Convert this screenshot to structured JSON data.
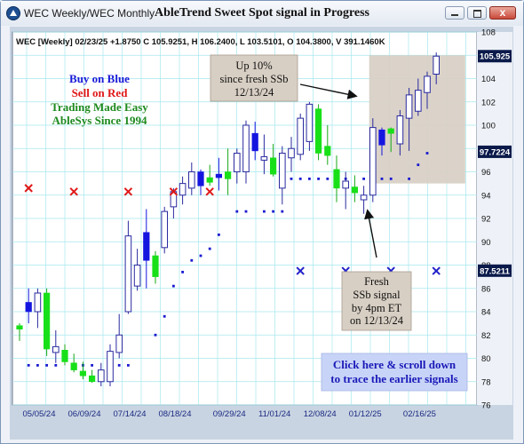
{
  "window": {
    "title": "WEC Weekly/WEC Monthly",
    "close_glyph": "x"
  },
  "chart_data": {
    "type": "bar",
    "title": "AbleTrend Sweet Spot signal in Progress",
    "info_line": "WEC [Weekly] 02/23/25 +1.8750 C 105.9251, H 106.2400, L 103.5101, O 104.3800, V 391.1460K",
    "ylim": [
      76,
      108
    ],
    "y_ticks": [
      76,
      78,
      80,
      82,
      84,
      86,
      88,
      90,
      92,
      94,
      96,
      98,
      100,
      102,
      104,
      106,
      108
    ],
    "x_tick_labels": [
      "05/05/24",
      "06/09/24",
      "07/14/24",
      "08/18/24",
      "09/29/24",
      "11/01/24",
      "12/08/24",
      "01/12/25",
      "02/16/25"
    ],
    "x_tick_index": [
      0,
      5,
      10,
      15,
      21,
      26,
      31,
      36,
      42
    ],
    "price_badges": [
      {
        "value": "105.925",
        "y": 105.925,
        "bg": "#0a1a4a",
        "fg": "#ffffff"
      },
      {
        "value": "97.7224",
        "y": 97.72,
        "bg": "#0a1a4a",
        "fg": "#ffffff"
      },
      {
        "value": "87.5211",
        "y": 87.52,
        "bg": "#0a1a4a",
        "fg": "#ffffff"
      }
    ],
    "colors": {
      "blue": "#1515e0",
      "green": "#18e018",
      "neutral": "#2a2aa0",
      "dot": "#1a1ad0",
      "red_x": "#e01818",
      "blue_x": "#2020c8",
      "annotation_bg": "#d8cfc4"
    },
    "series": [
      {
        "bar": 0,
        "o": 82.5,
        "h": 83.0,
        "l": 81.5,
        "c": 82.8,
        "color": "green"
      },
      {
        "bar": 1,
        "o": 84.0,
        "h": 86.0,
        "l": 83.0,
        "c": 84.8,
        "color": "blue"
      },
      {
        "bar": 2,
        "o": 84.0,
        "h": 86.0,
        "l": 82.6,
        "c": 85.6,
        "color": "neutral"
      },
      {
        "bar": 3,
        "o": 85.6,
        "h": 86.0,
        "l": 80.2,
        "c": 80.8,
        "color": "green"
      },
      {
        "bar": 4,
        "o": 81.0,
        "h": 82.4,
        "l": 79.6,
        "c": 80.5,
        "color": "neutral"
      },
      {
        "bar": 5,
        "o": 80.7,
        "h": 81.2,
        "l": 79.4,
        "c": 79.7,
        "color": "green"
      },
      {
        "bar": 6,
        "o": 79.6,
        "h": 80.4,
        "l": 78.8,
        "c": 79.0,
        "color": "green"
      },
      {
        "bar": 7,
        "o": 78.9,
        "h": 79.7,
        "l": 78.2,
        "c": 78.5,
        "color": "green"
      },
      {
        "bar": 8,
        "o": 78.5,
        "h": 79.0,
        "l": 77.9,
        "c": 78.0,
        "color": "green"
      },
      {
        "bar": 9,
        "o": 78.0,
        "h": 79.6,
        "l": 77.6,
        "c": 79.0,
        "color": "neutral"
      },
      {
        "bar": 10,
        "o": 78.0,
        "h": 81.2,
        "l": 77.6,
        "c": 80.6,
        "color": "neutral"
      },
      {
        "bar": 11,
        "o": 80.5,
        "h": 83.8,
        "l": 80.0,
        "c": 82.0,
        "color": "neutral"
      },
      {
        "bar": 12,
        "o": 84.0,
        "h": 91.8,
        "l": 83.8,
        "c": 90.5,
        "color": "neutral"
      },
      {
        "bar": 13,
        "o": 88.0,
        "h": 89.4,
        "l": 85.8,
        "c": 86.2,
        "color": "neutral"
      },
      {
        "bar": 14,
        "o": 88.4,
        "h": 92.8,
        "l": 86.0,
        "c": 90.8,
        "color": "blue"
      },
      {
        "bar": 15,
        "o": 87.0,
        "h": 89.2,
        "l": 86.4,
        "c": 88.8,
        "color": "green"
      },
      {
        "bar": 16,
        "o": 89.5,
        "h": 93.0,
        "l": 89.0,
        "c": 92.6,
        "color": "neutral"
      },
      {
        "bar": 17,
        "o": 93.0,
        "h": 94.6,
        "l": 92.0,
        "c": 94.3,
        "color": "neutral"
      },
      {
        "bar": 18,
        "o": 94.0,
        "h": 95.6,
        "l": 93.2,
        "c": 95.0,
        "color": "neutral"
      },
      {
        "bar": 19,
        "o": 94.6,
        "h": 96.8,
        "l": 94.0,
        "c": 96.0,
        "color": "neutral"
      },
      {
        "bar": 20,
        "o": 94.8,
        "h": 96.2,
        "l": 94.0,
        "c": 96.0,
        "color": "blue"
      },
      {
        "bar": 21,
        "o": 95.5,
        "h": 96.6,
        "l": 94.8,
        "c": 95.1,
        "color": "green"
      },
      {
        "bar": 22,
        "o": 95.5,
        "h": 97.2,
        "l": 94.4,
        "c": 95.8,
        "color": "blue"
      },
      {
        "bar": 23,
        "o": 96.0,
        "h": 98.0,
        "l": 94.0,
        "c": 95.4,
        "color": "green"
      },
      {
        "bar": 24,
        "o": 96.0,
        "h": 98.0,
        "l": 95.0,
        "c": 97.6,
        "color": "neutral"
      },
      {
        "bar": 25,
        "o": 96.0,
        "h": 100.4,
        "l": 95.0,
        "c": 100.0,
        "color": "neutral"
      },
      {
        "bar": 26,
        "o": 97.8,
        "h": 100.3,
        "l": 97.0,
        "c": 99.3,
        "color": "blue"
      },
      {
        "bar": 27,
        "o": 97.0,
        "h": 99.2,
        "l": 95.8,
        "c": 97.3,
        "color": "neutral"
      },
      {
        "bar": 28,
        "o": 97.2,
        "h": 98.4,
        "l": 95.6,
        "c": 95.8,
        "color": "green"
      },
      {
        "bar": 29,
        "o": 94.6,
        "h": 98.2,
        "l": 93.2,
        "c": 97.6,
        "color": "neutral"
      },
      {
        "bar": 30,
        "o": 98.0,
        "h": 99.0,
        "l": 96.0,
        "c": 97.2,
        "color": "neutral"
      },
      {
        "bar": 31,
        "o": 97.5,
        "h": 101.0,
        "l": 97.0,
        "c": 100.6,
        "color": "neutral"
      },
      {
        "bar": 32,
        "o": 98.6,
        "h": 102.0,
        "l": 97.8,
        "c": 101.8,
        "color": "neutral"
      },
      {
        "bar": 33,
        "o": 101.4,
        "h": 101.8,
        "l": 97.0,
        "c": 97.6,
        "color": "green"
      },
      {
        "bar": 34,
        "o": 98.2,
        "h": 100.0,
        "l": 96.6,
        "c": 97.4,
        "color": "green"
      },
      {
        "bar": 35,
        "o": 96.2,
        "h": 97.4,
        "l": 93.4,
        "c": 94.6,
        "color": "green"
      },
      {
        "bar": 36,
        "o": 94.6,
        "h": 96.0,
        "l": 92.8,
        "c": 95.2,
        "color": "neutral"
      },
      {
        "bar": 37,
        "o": 94.7,
        "h": 95.7,
        "l": 93.4,
        "c": 94.2,
        "color": "green"
      },
      {
        "bar": 38,
        "o": 94.0,
        "h": 94.8,
        "l": 92.4,
        "c": 93.6,
        "color": "neutral"
      },
      {
        "bar": 39,
        "o": 94.0,
        "h": 100.6,
        "l": 93.4,
        "c": 99.8,
        "color": "neutral"
      },
      {
        "bar": 40,
        "o": 98.3,
        "h": 99.8,
        "l": 97.4,
        "c": 99.6,
        "color": "blue"
      },
      {
        "bar": 41,
        "o": 99.3,
        "h": 99.8,
        "l": 97.7,
        "c": 99.7,
        "color": "green"
      },
      {
        "bar": 42,
        "o": 98.4,
        "h": 101.3,
        "l": 97.4,
        "c": 100.8,
        "color": "neutral"
      },
      {
        "bar": 43,
        "o": 100.6,
        "h": 103.2,
        "l": 97.8,
        "c": 102.6,
        "color": "neutral"
      },
      {
        "bar": 44,
        "o": 101.2,
        "h": 104.0,
        "l": 100.8,
        "c": 103.0,
        "color": "neutral"
      },
      {
        "bar": 45,
        "o": 102.8,
        "h": 104.6,
        "l": 101.4,
        "c": 104.2,
        "color": "neutral"
      },
      {
        "bar": 46,
        "o": 104.38,
        "h": 106.24,
        "l": 103.51,
        "c": 105.9251,
        "color": "neutral"
      }
    ],
    "stop_dots": [
      {
        "bar": 1,
        "y": 79.4
      },
      {
        "bar": 2,
        "y": 79.4
      },
      {
        "bar": 3,
        "y": 79.4
      },
      {
        "bar": 4,
        "y": 79.4
      },
      {
        "bar": 6,
        "y": 79.4
      },
      {
        "bar": 7,
        "y": 79.4
      },
      {
        "bar": 8,
        "y": 79.4
      },
      {
        "bar": 10,
        "y": 79.4
      },
      {
        "bar": 11,
        "y": 79.4
      },
      {
        "bar": 12,
        "y": 79.4
      },
      {
        "bar": 15,
        "y": 82.0
      },
      {
        "bar": 16,
        "y": 83.6
      },
      {
        "bar": 17,
        "y": 86.2
      },
      {
        "bar": 18,
        "y": 87.4
      },
      {
        "bar": 19,
        "y": 88.4
      },
      {
        "bar": 20,
        "y": 88.8
      },
      {
        "bar": 21,
        "y": 89.4
      },
      {
        "bar": 22,
        "y": 90.6
      },
      {
        "bar": 24,
        "y": 92.6
      },
      {
        "bar": 25,
        "y": 92.6
      },
      {
        "bar": 27,
        "y": 92.6
      },
      {
        "bar": 28,
        "y": 92.6
      },
      {
        "bar": 29,
        "y": 92.6
      },
      {
        "bar": 30,
        "y": 95.4
      },
      {
        "bar": 31,
        "y": 95.4
      },
      {
        "bar": 32,
        "y": 95.4
      },
      {
        "bar": 33,
        "y": 95.4
      },
      {
        "bar": 34,
        "y": 95.4
      },
      {
        "bar": 36,
        "y": 95.4
      },
      {
        "bar": 38,
        "y": 95.4
      },
      {
        "bar": 40,
        "y": 95.4
      },
      {
        "bar": 41,
        "y": 95.4
      },
      {
        "bar": 43,
        "y": 95.4
      },
      {
        "bar": 44,
        "y": 96.6
      },
      {
        "bar": 45,
        "y": 97.6
      }
    ],
    "sell_markers": [
      {
        "bar": 1,
        "y": 94.6
      },
      {
        "bar": 6,
        "y": 94.3
      },
      {
        "bar": 12,
        "y": 94.3
      },
      {
        "bar": 17,
        "y": 94.3
      },
      {
        "bar": 21,
        "y": 94.3
      }
    ],
    "buy_markers": [
      {
        "bar": 31,
        "y": 87.5
      },
      {
        "bar": 36,
        "y": 87.5
      },
      {
        "bar": 41,
        "y": 87.5
      },
      {
        "bar": 46,
        "y": 87.5
      }
    ],
    "highlight_zone": {
      "from_bar": 38.6,
      "to_bar": 49.2,
      "ylow": 95.0,
      "yhigh": 106.0,
      "color": "#d8cfc4"
    },
    "legend_text": [
      {
        "text": "Buy on Blue",
        "color": "#1a1ad8"
      },
      {
        "text": "Sell on Red",
        "color": "#e01818"
      },
      {
        "text": "Trading Made Easy",
        "color": "#1e8a1e"
      },
      {
        "text": "AbleSys Since 1994",
        "color": "#1e8a1e"
      }
    ],
    "annotations": {
      "up_box": [
        "Up 10%",
        "since fresh SSb",
        "12/13/24"
      ],
      "fresh_box": [
        "Fresh",
        "SSb signal",
        "by 4pm ET",
        "on 12/13/24"
      ],
      "click_box": [
        "Click here & scroll down",
        "to trace the earlier signals"
      ]
    }
  }
}
